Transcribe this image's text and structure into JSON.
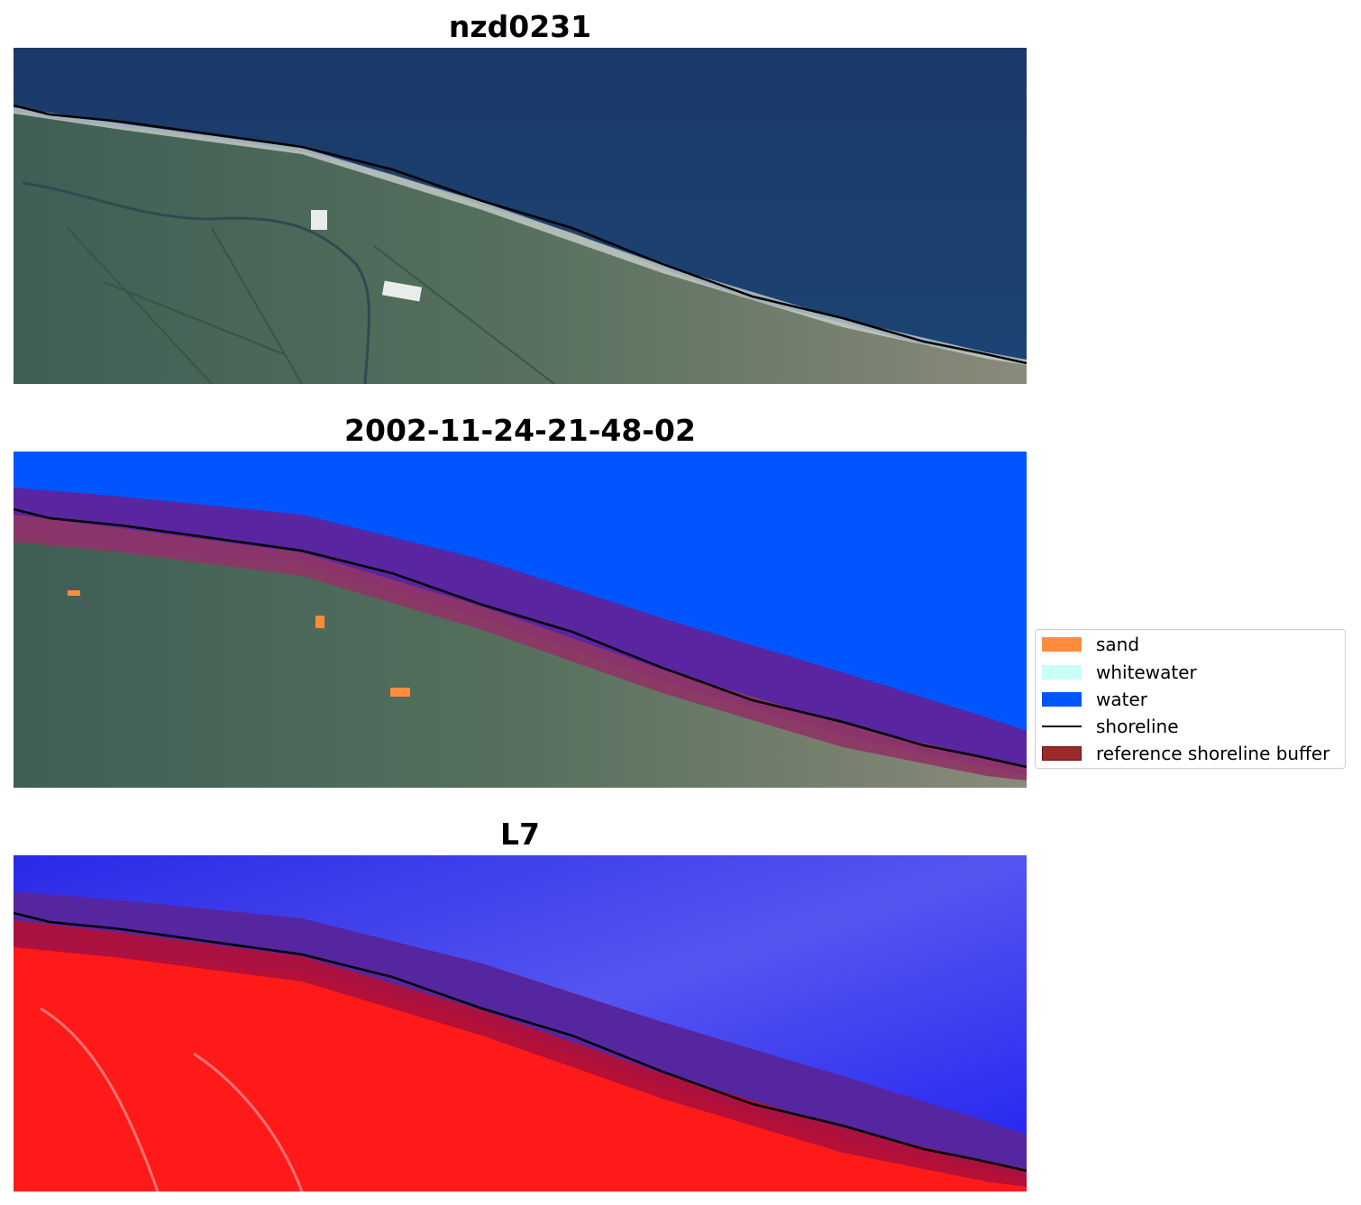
{
  "panels": [
    {
      "title": "nzd0231"
    },
    {
      "title": "2002-11-24-21-48-02"
    },
    {
      "title": "L7"
    }
  ],
  "legend": {
    "items": [
      {
        "label": "sand",
        "kind": "patch",
        "color": "#ff8c3c"
      },
      {
        "label": "whitewater",
        "kind": "patch",
        "color": "#c8fff8"
      },
      {
        "label": "water",
        "kind": "patch",
        "color": "#0055ff"
      },
      {
        "label": "shoreline",
        "kind": "line",
        "color": "#000000"
      },
      {
        "label": "reference shoreline buffer",
        "kind": "patch",
        "color": "#9b2b2b",
        "edge": "#6e1010"
      }
    ]
  },
  "colors": {
    "ocean_rgb": "#1b3d6e",
    "land_rgb": "#4f6e5a",
    "water_class": "#0055ff",
    "buffer_over_water": "#5a25a0",
    "buffer_over_land": "#8e3566",
    "ndwi_water": "#2020f0",
    "ndwi_land": "#ff1a1a",
    "ndwi_buffer_water": "#5526a0",
    "ndwi_buffer_land": "#b0103a"
  }
}
